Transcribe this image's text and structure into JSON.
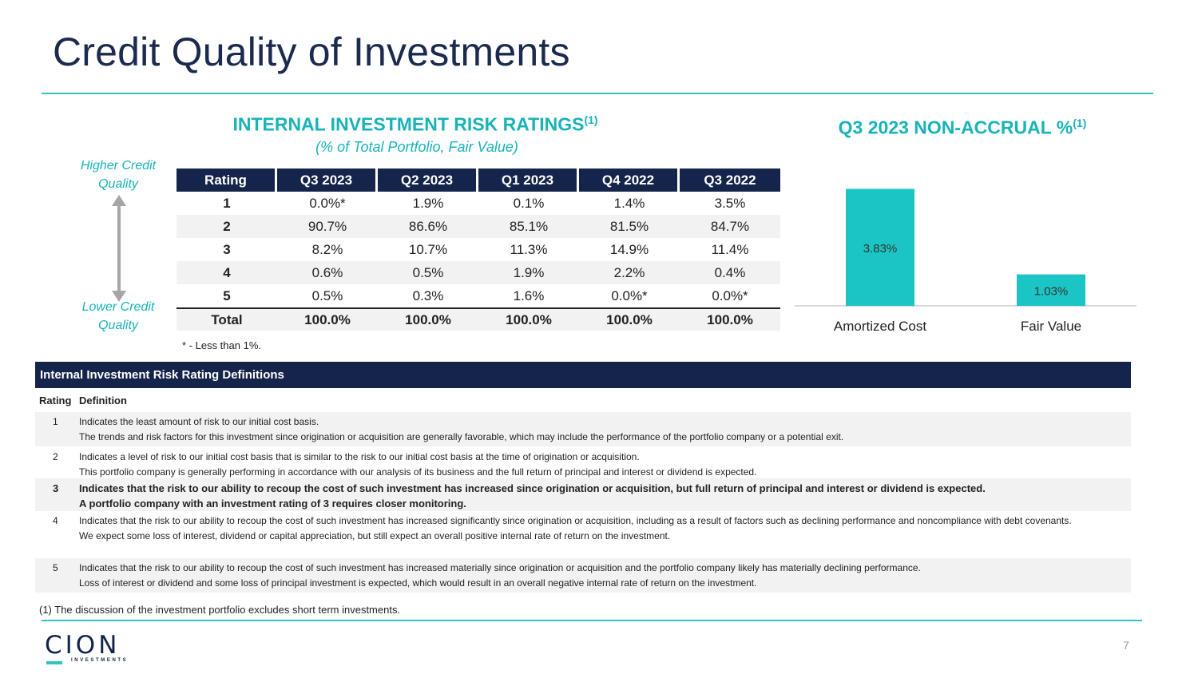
{
  "title": "Credit Quality of Investments",
  "ratings": {
    "title": "INTERNAL INVESTMENT RISK RATINGS",
    "title_sup": "(1)",
    "subtitle": "(% of Total Portfolio, Fair Value)",
    "higher_label": "Higher Credit Quality",
    "lower_label": "Lower Credit Quality",
    "columns": [
      "Rating",
      "Q3 2023",
      "Q2 2023",
      "Q1 2023",
      "Q4 2022",
      "Q3 2022"
    ],
    "rows": [
      {
        "rating": "1",
        "values": [
          "0.0%*",
          "1.9%",
          "0.1%",
          "1.4%",
          "3.5%"
        ]
      },
      {
        "rating": "2",
        "values": [
          "90.7%",
          "86.6%",
          "85.1%",
          "81.5%",
          "84.7%"
        ]
      },
      {
        "rating": "3",
        "values": [
          "8.2%",
          "10.7%",
          "11.3%",
          "14.9%",
          "11.4%"
        ]
      },
      {
        "rating": "4",
        "values": [
          "0.6%",
          "0.5%",
          "1.9%",
          "2.2%",
          "0.4%"
        ]
      },
      {
        "rating": "5",
        "values": [
          "0.5%",
          "0.3%",
          "1.6%",
          "0.0%*",
          "0.0%*"
        ]
      }
    ],
    "total": {
      "label": "Total",
      "values": [
        "100.0%",
        "100.0%",
        "100.0%",
        "100.0%",
        "100.0%"
      ]
    },
    "star_note": "* - Less than 1%."
  },
  "non_accrual": {
    "title": "Q3 2023 NON-ACCRUAL %",
    "title_sup": "(1)"
  },
  "chart_data": {
    "type": "bar",
    "title": "Q3 2023 NON-ACCRUAL %",
    "categories": [
      "Amortized Cost",
      "Fair Value"
    ],
    "values": [
      3.83,
      1.03
    ],
    "value_labels": [
      "3.83%",
      "1.03%"
    ],
    "ylim": [
      0,
      4.0
    ],
    "grid": false,
    "bar_color": "#1cc5c5"
  },
  "definitions": {
    "header": "Internal Investment Risk Rating Definitions",
    "col_rating": "Rating",
    "col_definition": "Definition",
    "rows": [
      {
        "rating": "1",
        "lines": [
          "Indicates the least amount of risk to our initial cost basis.",
          "The trends and risk factors for this investment since origination or acquisition are generally favorable, which may include the performance of the portfolio company or a potential exit."
        ]
      },
      {
        "rating": "2",
        "lines": [
          "Indicates a level of risk to our initial cost basis that is similar to the risk to our initial cost basis at the time of origination or acquisition.",
          "This portfolio company is generally performing in accordance with our analysis of its business and the full return of principal and interest or dividend is expected."
        ]
      },
      {
        "rating": "3",
        "lines": [
          "Indicates that the risk to our ability to recoup the cost of such investment has increased since origination or acquisition, but full return of principal and interest or dividend is expected.",
          "A portfolio company with an investment rating of 3 requires closer monitoring."
        ]
      },
      {
        "rating": "4",
        "lines": [
          "Indicates that the risk to our ability to recoup the cost of such investment has increased significantly since origination or acquisition, including as a result of factors such as declining performance and noncompliance with debt covenants.",
          "We expect some loss of interest, dividend or capital appreciation, but still expect an overall positive internal rate of return on the investment."
        ]
      },
      {
        "rating": "5",
        "lines": [
          "Indicates that the risk to our ability to recoup the cost of such investment has increased materially since origination or acquisition and the portfolio company likely has materially declining performance.",
          "Loss of interest or dividend and some loss of principal investment is expected, which would result in an overall negative internal rate of return on the investment."
        ]
      }
    ]
  },
  "footnote": "(1)   The discussion of the investment portfolio excludes short term investments.",
  "logo": {
    "name": "CION",
    "sub": "INVESTMENTS"
  },
  "page_number": "7",
  "colors": {
    "navy": "#14244a",
    "teal": "#17b3b8",
    "rule": "#2ec4c4"
  }
}
